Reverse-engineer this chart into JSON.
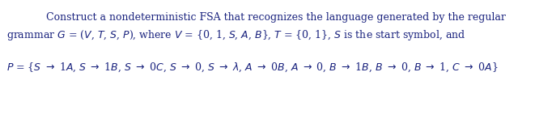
{
  "background_color": "#ffffff",
  "text_color": "#1a237e",
  "line1": "Construct a nondeterministic FSA that recognizes the language generated by the regular",
  "line2_plain": "grammar ",
  "line2_rest": " = (V, T, S, P), where V = {0, 1, S, A, B}, T = {0, 1}, S is the start symbol, and",
  "line3": "P = {S -> 1A, S -> 1B, S -> 0C, S -> 0, S -> lambda, A -> 0B, A -> 0, B -> 1B, B -> 0, B -> 1, C -> 0A}",
  "fontsize": 9.0,
  "figsize": [
    6.82,
    1.73
  ],
  "dpi": 100
}
